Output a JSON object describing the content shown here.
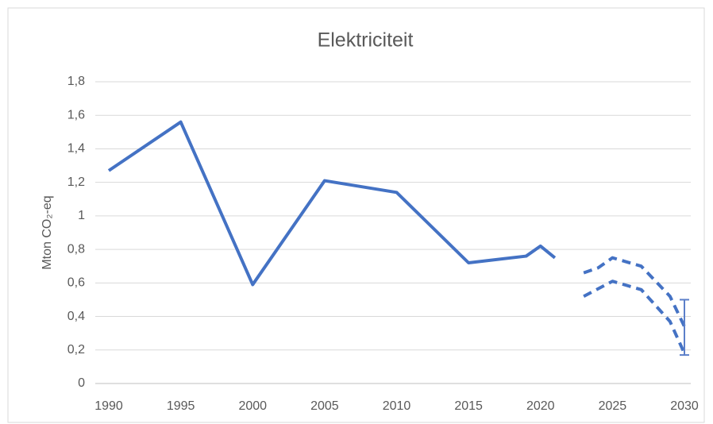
{
  "chart_data": {
    "type": "line",
    "title": "Elektriciteit",
    "y_label": "Mton CO₂-eq",
    "series": [
      {
        "color": "#4472c4",
        "dashed": false,
        "x": [
          1990,
          1995,
          2000,
          2005,
          2010,
          2015,
          2019,
          2020,
          2021
        ],
        "values": [
          1.27,
          1.56,
          0.59,
          1.21,
          1.14,
          0.72,
          0.76,
          0.82,
          0.75
        ]
      },
      {
        "color": "#4472c4",
        "dashed": true,
        "x": [
          2023,
          2024,
          2025,
          2027,
          2029,
          2030
        ],
        "values": [
          0.66,
          0.69,
          0.75,
          0.7,
          0.52,
          0.34
        ]
      },
      {
        "color": "#4472c4",
        "dashed": true,
        "x": [
          2023,
          2025,
          2027,
          2029,
          2030
        ],
        "values": [
          0.52,
          0.61,
          0.56,
          0.37,
          0.18
        ]
      }
    ],
    "range": {
      "x": 2030,
      "low": 0.17,
      "high": 0.5,
      "color": "#5b7fc9"
    },
    "xlim": [
      1990,
      2030
    ],
    "xticks": [
      1990,
      1995,
      2000,
      2005,
      2010,
      2015,
      2020,
      2025,
      2030
    ],
    "ylim": [
      0,
      1.8
    ],
    "yticks": [
      0,
      {
        "value": 0.2,
        "label": "0,2"
      },
      {
        "value": 0.4,
        "label": "0,4"
      },
      {
        "value": 0.6,
        "label": "0,6"
      },
      {
        "value": 0.8,
        "label": "0,8"
      },
      1,
      {
        "value": 1.2,
        "label": "1,2"
      },
      {
        "value": 1.4,
        "label": "1,4"
      },
      {
        "value": 1.6,
        "label": "1,6"
      },
      {
        "value": 1.8,
        "label": "1,8"
      }
    ],
    "grid": true
  }
}
